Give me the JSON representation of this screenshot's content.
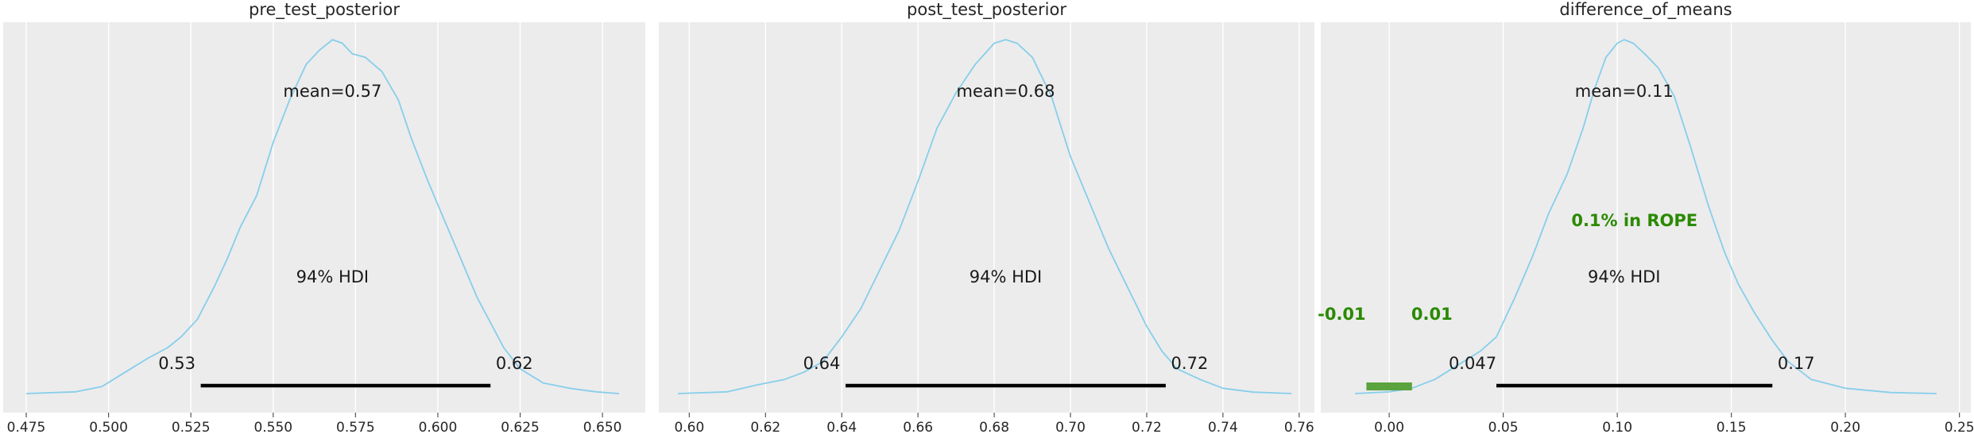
{
  "chart_data": [
    {
      "type": "area",
      "title": "pre_test_posterior",
      "xlim": [
        0.468,
        0.663
      ],
      "xticks": [
        0.475,
        0.5,
        0.525,
        0.55,
        0.575,
        0.6,
        0.625,
        0.65
      ],
      "xtick_labels": [
        "0.475",
        "0.500",
        "0.525",
        "0.550",
        "0.575",
        "0.600",
        "0.625",
        "0.650"
      ],
      "mean_label": "mean=0.57",
      "hdi_label": "94% HDI",
      "hdi": [
        0.528,
        0.616
      ],
      "hdi_low_label": "0.53",
      "hdi_high_label": "0.62",
      "density": {
        "x": [
          0.475,
          0.49,
          0.498,
          0.505,
          0.512,
          0.518,
          0.522,
          0.527,
          0.532,
          0.536,
          0.54,
          0.545,
          0.55,
          0.555,
          0.56,
          0.564,
          0.568,
          0.571,
          0.574,
          0.578,
          0.583,
          0.588,
          0.592,
          0.597,
          0.602,
          0.607,
          0.612,
          0.616,
          0.62,
          0.625,
          0.632,
          0.64,
          0.648,
          0.655
        ],
        "y": [
          0.0,
          0.005,
          0.02,
          0.06,
          0.1,
          0.13,
          0.16,
          0.21,
          0.3,
          0.38,
          0.47,
          0.56,
          0.71,
          0.83,
          0.93,
          0.97,
          1.0,
          0.99,
          0.96,
          0.95,
          0.91,
          0.83,
          0.72,
          0.6,
          0.49,
          0.38,
          0.27,
          0.2,
          0.13,
          0.07,
          0.03,
          0.015,
          0.005,
          0.0
        ]
      },
      "bg_color": "#ececec",
      "curve_color": "#87ceeb"
    },
    {
      "type": "area",
      "title": "post_test_posterior",
      "xlim": [
        0.592,
        0.764
      ],
      "xticks": [
        0.6,
        0.62,
        0.64,
        0.66,
        0.68,
        0.7,
        0.72,
        0.74,
        0.76
      ],
      "xtick_labels": [
        "0.60",
        "0.62",
        "0.64",
        "0.66",
        "0.68",
        "0.70",
        "0.72",
        "0.74",
        "0.76"
      ],
      "mean_label": "mean=0.68",
      "hdi_label": "94% HDI",
      "hdi": [
        0.641,
        0.725
      ],
      "hdi_low_label": "0.64",
      "hdi_high_label": "0.72",
      "density": {
        "x": [
          0.597,
          0.61,
          0.618,
          0.625,
          0.63,
          0.635,
          0.64,
          0.645,
          0.65,
          0.655,
          0.66,
          0.665,
          0.67,
          0.675,
          0.68,
          0.683,
          0.686,
          0.69,
          0.695,
          0.7,
          0.705,
          0.71,
          0.715,
          0.72,
          0.724,
          0.728,
          0.734,
          0.74,
          0.748,
          0.758
        ],
        "y": [
          0.0,
          0.005,
          0.025,
          0.04,
          0.06,
          0.09,
          0.16,
          0.24,
          0.35,
          0.46,
          0.6,
          0.75,
          0.85,
          0.93,
          0.99,
          1.0,
          0.99,
          0.95,
          0.84,
          0.67,
          0.54,
          0.41,
          0.3,
          0.19,
          0.12,
          0.07,
          0.04,
          0.015,
          0.004,
          0.0
        ]
      },
      "bg_color": "#ececec",
      "curve_color": "#87ceeb"
    },
    {
      "type": "area",
      "title": "difference_of_means",
      "xlim": [
        -0.03,
        0.255
      ],
      "xticks": [
        0.0,
        0.05,
        0.1,
        0.15,
        0.2,
        0.25
      ],
      "xtick_labels": [
        "0.00",
        "0.05",
        "0.10",
        "0.15",
        "0.20",
        "0.25"
      ],
      "mean_label": "mean=0.11",
      "hdi_label": "94% HDI",
      "hdi": [
        0.047,
        0.168
      ],
      "hdi_low_label": "0.047",
      "hdi_high_label": "0.17",
      "rope": [
        -0.01,
        0.01
      ],
      "rope_low_label": "-0.01",
      "rope_high_label": "0.01",
      "rope_text": "0.1% in ROPE",
      "rope_color": "#2a8a00",
      "rope_bar_color": "#5aa33e",
      "density": {
        "x": [
          -0.015,
          0.0,
          0.01,
          0.02,
          0.03,
          0.04,
          0.047,
          0.055,
          0.063,
          0.07,
          0.078,
          0.085,
          0.09,
          0.095,
          0.1,
          0.103,
          0.107,
          0.112,
          0.118,
          0.125,
          0.132,
          0.14,
          0.147,
          0.153,
          0.16,
          0.168,
          0.175,
          0.185,
          0.2,
          0.22,
          0.24
        ],
        "y": [
          0.0,
          0.005,
          0.015,
          0.04,
          0.08,
          0.12,
          0.16,
          0.27,
          0.39,
          0.51,
          0.62,
          0.75,
          0.86,
          0.95,
          0.99,
          1.0,
          0.99,
          0.96,
          0.92,
          0.84,
          0.7,
          0.53,
          0.4,
          0.31,
          0.23,
          0.15,
          0.09,
          0.04,
          0.015,
          0.003,
          0.0
        ]
      },
      "bg_color": "#ececec",
      "curve_color": "#87ceeb"
    }
  ]
}
